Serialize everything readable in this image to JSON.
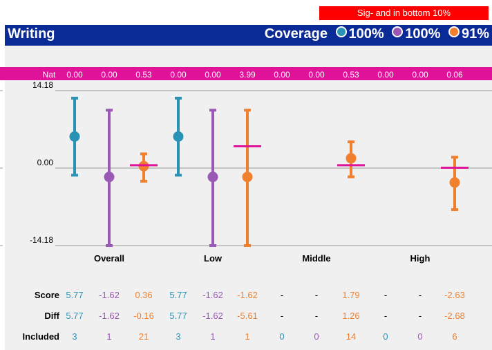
{
  "header": {
    "alert": "Sig- and in bottom 10%",
    "title": "Writing",
    "coverage_label": "Coverage",
    "coverage": [
      {
        "value": "100%",
        "color": "#2a93b5"
      },
      {
        "value": "100%",
        "color": "#9b59b6"
      },
      {
        "value": "91%",
        "color": "#f07f2e"
      }
    ]
  },
  "nat": {
    "label": "Nat",
    "values": [
      "0.00",
      "0.00",
      "0.53",
      "0.00",
      "0.00",
      "3.99",
      "0.00",
      "0.00",
      "0.53",
      "0.00",
      "0.00",
      "0.06"
    ]
  },
  "chart_data": {
    "type": "scatter",
    "subtype": "error-bar",
    "categories": [
      "Overall",
      "Low",
      "Middle",
      "High"
    ],
    "yticks": [
      "14.18",
      "0.00",
      "-14.18"
    ],
    "ylim": [
      -14.18,
      14.18
    ],
    "grid": true,
    "series_colors": [
      "#2a93b5",
      "#9b59b6",
      "#f07f2e"
    ],
    "nat_color": "#e0129a",
    "points": [
      {
        "cat": 0,
        "s": 0,
        "y": 5.77,
        "lo": -1.3,
        "hi": 12.8
      },
      {
        "cat": 0,
        "s": 1,
        "y": -1.62,
        "lo": -14.18,
        "hi": 10.6
      },
      {
        "cat": 0,
        "s": 2,
        "y": 0.36,
        "lo": -2.4,
        "hi": 2.6,
        "nat": 0.53
      },
      {
        "cat": 1,
        "s": 0,
        "y": 5.77,
        "lo": -1.3,
        "hi": 12.8
      },
      {
        "cat": 1,
        "s": 1,
        "y": -1.62,
        "lo": -14.18,
        "hi": 10.6
      },
      {
        "cat": 1,
        "s": 2,
        "y": -1.62,
        "lo": -14.18,
        "hi": 10.6,
        "nat": 3.99
      },
      {
        "cat": 2,
        "s": 2,
        "y": 1.79,
        "lo": -1.6,
        "hi": 4.8,
        "nat": 0.53
      },
      {
        "cat": 3,
        "s": 2,
        "y": -2.63,
        "lo": -7.6,
        "hi": 2.0,
        "nat": 0.06
      }
    ]
  },
  "table": {
    "rows": [
      {
        "label": "Score",
        "values": [
          "5.77",
          "-1.62",
          "0.36",
          "5.77",
          "-1.62",
          "-1.62",
          "-",
          "-",
          "1.79",
          "-",
          "-",
          "-2.63"
        ]
      },
      {
        "label": "Diff",
        "values": [
          "5.77",
          "-1.62",
          "-0.16",
          "5.77",
          "-1.62",
          "-5.61",
          "-",
          "-",
          "1.26",
          "-",
          "-",
          "-2.68"
        ]
      },
      {
        "label": "Included",
        "values": [
          "3",
          "1",
          "21",
          "3",
          "1",
          "1",
          "0",
          "0",
          "14",
          "0",
          "0",
          "6"
        ]
      }
    ]
  }
}
